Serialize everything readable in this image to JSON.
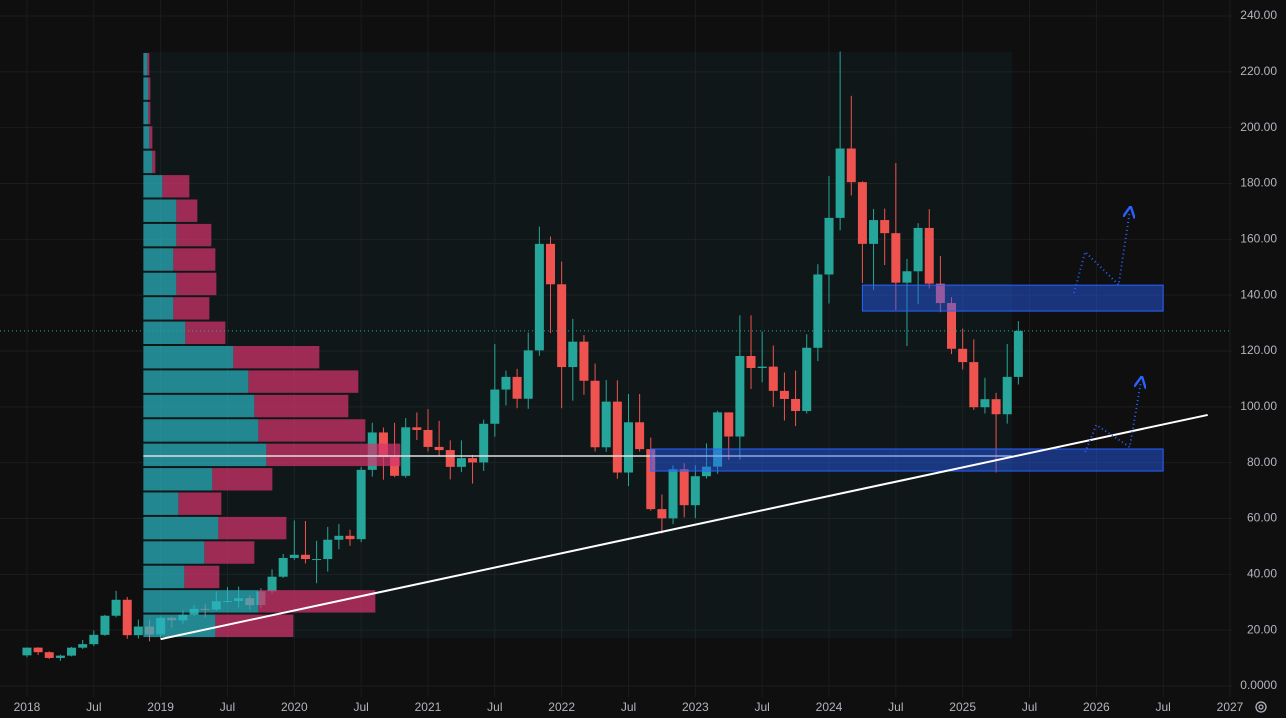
{
  "chart_data": {
    "type": "candlestick",
    "x": [
      "2018-01",
      "2018-02",
      "2018-03",
      "2018-04",
      "2018-05",
      "2018-06",
      "2018-07",
      "2018-08",
      "2018-09",
      "2018-10",
      "2018-11",
      "2018-12",
      "2019-01",
      "2019-02",
      "2019-03",
      "2019-04",
      "2019-05",
      "2019-06",
      "2019-07",
      "2019-08",
      "2019-09",
      "2019-10",
      "2019-11",
      "2019-12",
      "2020-01",
      "2020-02",
      "2020-03",
      "2020-04",
      "2020-05",
      "2020-06",
      "2020-07",
      "2020-08",
      "2020-09",
      "2020-10",
      "2020-11",
      "2020-12",
      "2021-01",
      "2021-02",
      "2021-03",
      "2021-04",
      "2021-05",
      "2021-06",
      "2021-07",
      "2021-08",
      "2021-09",
      "2021-10",
      "2021-11",
      "2021-12",
      "2022-01",
      "2022-02",
      "2022-03",
      "2022-04",
      "2022-05",
      "2022-06",
      "2022-07",
      "2022-08",
      "2022-09",
      "2022-10",
      "2022-11",
      "2022-12",
      "2023-01",
      "2023-02",
      "2023-03",
      "2023-04",
      "2023-05",
      "2023-06",
      "2023-07",
      "2023-08",
      "2023-09",
      "2023-10",
      "2023-11",
      "2023-12",
      "2024-01",
      "2024-02",
      "2024-03",
      "2024-04",
      "2024-05",
      "2024-06",
      "2024-07",
      "2024-08",
      "2024-09",
      "2024-10",
      "2024-11",
      "2024-12",
      "2025-01",
      "2025-02",
      "2025-03",
      "2025-04",
      "2025-05",
      "2025-06"
    ],
    "open": [
      10.98,
      13.74,
      12.11,
      10.05,
      10.88,
      13.73,
      14.99,
      18.33,
      25.17,
      30.89,
      18.21,
      21.3,
      18.46,
      24.41,
      23.53,
      25.52,
      27.63,
      27.41,
      30.37,
      30.45,
      31.45,
      28.99,
      33.93,
      39.15,
      45.86,
      47.0,
      45.48,
      45.48,
      52.39,
      53.8,
      52.61,
      77.43,
      90.82,
      81.99,
      75.29,
      92.66,
      91.71,
      85.64,
      84.51,
      78.5,
      81.62,
      80.08,
      93.93,
      106.19,
      110.72,
      102.9,
      120.23,
      158.37,
      143.9,
      114.25,
      123.34,
      109.34,
      85.52,
      101.86,
      76.47,
      94.47,
      84.86,
      63.36,
      60.06,
      77.63,
      64.77,
      75.15,
      78.58,
      98.01,
      89.37,
      118.21,
      113.91,
      114.4,
      105.72,
      102.82,
      98.5,
      121.16,
      147.41,
      167.69,
      192.53,
      180.49,
      158.38,
      166.9,
      162.21,
      144.48,
      148.56,
      164.08,
      144.13,
      137.18,
      120.79,
      116.02,
      99.86,
      102.74,
      97.35,
      110.73
    ],
    "high": [
      13.8,
      13.9,
      12.4,
      11.2,
      14.0,
      16.5,
      19.9,
      25.5,
      34.1,
      31.9,
      23.8,
      23.8,
      24.9,
      24.8,
      27.2,
      29.0,
      29.5,
      33.9,
      35.5,
      35.6,
      32.5,
      35.0,
      41.8,
      47.3,
      59.3,
      59.1,
      52.0,
      57.0,
      58.0,
      56.0,
      78.5,
      94.3,
      92.6,
      94.3,
      96.0,
      97.98,
      99.2,
      95.0,
      88.0,
      88.0,
      82.8,
      95.4,
      122.5,
      113.0,
      113.6,
      126.6,
      164.5,
      161.0,
      152.0,
      131.5,
      125.7,
      115.5,
      109.6,
      109.5,
      104.6,
      104.6,
      89.0,
      68.6,
      79.0,
      79.8,
      79.1,
      86.9,
      98.6,
      98.0,
      132.8,
      132.8,
      127.0,
      122.0,
      112.3,
      113.0,
      126.0,
      151.1,
      182.7,
      227.3,
      211.4,
      180.8,
      170.9,
      171.0,
      187.3,
      153.0,
      165.8,
      170.8,
      154.0,
      139.3,
      128.0,
      124.2,
      110.4,
      105.0,
      122.5,
      130.7
    ],
    "low": [
      10.3,
      11.1,
      9.7,
      9.0,
      10.6,
      13.3,
      14.3,
      18.0,
      24.6,
      16.9,
      17.0,
      16.0,
      16.9,
      20.9,
      22.1,
      25.0,
      24.5,
      26.9,
      29.9,
      28.1,
      27.4,
      27.9,
      33.1,
      38.7,
      45.2,
      43.9,
      36.8,
      41.0,
      49.0,
      50.2,
      51.5,
      75.0,
      73.9,
      74.8,
      74.6,
      88.1,
      84.0,
      82.5,
      74.0,
      76.6,
      72.5,
      77.0,
      89.3,
      100.5,
      99.5,
      99.3,
      118.3,
      126.4,
      99.5,
      102.2,
      104.3,
      84.0,
      83.9,
      74.2,
      71.6,
      84.0,
      62.8,
      54.6,
      58.0,
      60.4,
      60.1,
      74.3,
      76.0,
      81.0,
      81.0,
      106.4,
      108.8,
      100.0,
      95.1,
      93.1,
      97.6,
      116.4,
      137.0,
      163.2,
      175.7,
      144.3,
      141.9,
      150.8,
      134.7,
      121.8,
      136.8,
      142.4,
      133.9,
      118.9,
      113.4,
      98.9,
      97.6,
      76.5,
      94.0,
      108.0
    ],
    "close": [
      13.74,
      12.11,
      10.05,
      10.88,
      13.73,
      14.99,
      18.33,
      25.17,
      30.89,
      18.21,
      21.3,
      18.46,
      24.41,
      23.53,
      25.52,
      27.63,
      27.41,
      30.37,
      30.45,
      31.45,
      28.99,
      33.93,
      39.15,
      45.86,
      47.0,
      45.48,
      45.48,
      52.39,
      53.8,
      52.61,
      77.43,
      90.82,
      81.99,
      75.29,
      92.66,
      91.71,
      85.64,
      84.51,
      78.5,
      81.62,
      80.08,
      93.93,
      106.19,
      110.72,
      102.9,
      120.23,
      158.37,
      143.9,
      114.25,
      123.34,
      109.34,
      85.52,
      101.86,
      76.47,
      94.47,
      84.86,
      63.36,
      60.06,
      77.63,
      64.77,
      75.15,
      78.58,
      98.01,
      89.37,
      118.21,
      113.91,
      114.4,
      105.72,
      102.82,
      98.5,
      121.16,
      147.41,
      167.69,
      192.53,
      180.49,
      158.38,
      166.9,
      162.21,
      144.48,
      148.56,
      164.08,
      144.13,
      137.18,
      120.79,
      116.02,
      99.86,
      102.74,
      97.35,
      110.73,
      127.2
    ],
    "up_color": "#26a69a",
    "down_color": "#ef5350",
    "xlim": [
      "2017-11",
      "2027-01"
    ],
    "xticks": [
      {
        "value": "2018-01",
        "label": "2018"
      },
      {
        "value": "2018-07",
        "label": "Jul"
      },
      {
        "value": "2019-01",
        "label": "2019"
      },
      {
        "value": "2019-07",
        "label": "Jul"
      },
      {
        "value": "2020-01",
        "label": "2020"
      },
      {
        "value": "2020-07",
        "label": "Jul"
      },
      {
        "value": "2021-01",
        "label": "2021"
      },
      {
        "value": "2021-07",
        "label": "Jul"
      },
      {
        "value": "2022-01",
        "label": "2022"
      },
      {
        "value": "2022-07",
        "label": "Jul"
      },
      {
        "value": "2023-01",
        "label": "2023"
      },
      {
        "value": "2023-07",
        "label": "Jul"
      },
      {
        "value": "2024-01",
        "label": "2024"
      },
      {
        "value": "2024-07",
        "label": "Jul"
      },
      {
        "value": "2025-01",
        "label": "2025"
      },
      {
        "value": "2025-07",
        "label": "Jul"
      },
      {
        "value": "2026-01",
        "label": "2026"
      },
      {
        "value": "2026-07",
        "label": "Jul"
      },
      {
        "value": "2027-01",
        "label": "2027"
      }
    ],
    "ylim": [
      0,
      240
    ],
    "yticks": [
      {
        "value": 0,
        "label": "0.0000"
      },
      {
        "value": 20,
        "label": "20.00"
      },
      {
        "value": 40,
        "label": "40.00"
      },
      {
        "value": 60,
        "label": "60.00"
      },
      {
        "value": 80,
        "label": "80.00"
      },
      {
        "value": 100,
        "label": "100.00"
      },
      {
        "value": 120,
        "label": "120.00"
      },
      {
        "value": 140,
        "label": "140.00"
      },
      {
        "value": 160,
        "label": "160.00"
      },
      {
        "value": 180,
        "label": "180.00"
      },
      {
        "value": 200,
        "label": "200.00"
      },
      {
        "value": 220,
        "label": "220.00"
      },
      {
        "value": 240,
        "label": "240.00"
      }
    ],
    "grid": true,
    "volume_profile": {
      "start": "2018-11",
      "end": "2025-05",
      "bins": [
        17.2,
        25.95,
        34.69,
        43.44,
        52.18,
        60.93,
        69.68,
        78.42,
        87.17,
        95.91,
        104.66,
        113.41,
        122.15,
        130.9,
        139.64,
        148.39,
        157.14,
        165.88,
        174.63,
        183.37,
        192.12,
        200.87,
        209.61,
        218.36,
        227.1
      ],
      "up": [
        72,
        115,
        41,
        61,
        75,
        35,
        69,
        123,
        115,
        111,
        105,
        90,
        42,
        30,
        33,
        30,
        33,
        33,
        19,
        9,
        6,
        5,
        5,
        4
      ],
      "down": [
        78,
        117,
        35,
        50,
        68,
        43,
        60,
        134,
        107,
        94,
        110,
        86,
        40,
        36,
        40,
        42,
        35,
        21,
        27,
        3,
        3,
        2,
        2,
        2
      ],
      "poc": 82.4,
      "up_color": "#2bb3c0",
      "down_color": "#d6336c"
    },
    "zones": [
      {
        "start": "2024-04",
        "end": "2026-07",
        "top": 143.6,
        "bottom": 134.3
      },
      {
        "start": "2022-09",
        "end": "2026-07",
        "top": 84.9,
        "bottom": 77.0
      }
    ],
    "trendline": {
      "x": [
        "2019-01",
        "2026-11"
      ],
      "y": [
        16.8,
        97.1
      ]
    },
    "projections": [
      {
        "x": [
          "2025-11",
          "2025-12",
          "2026-03",
          "2026-04"
        ],
        "y": [
          140.8,
          155.5,
          143.7,
          169.8
        ]
      },
      {
        "x": [
          "2025-12",
          "2026-01",
          "2026-04",
          "2026-05"
        ],
        "y": [
          83.8,
          93.5,
          85.6,
          108.9
        ]
      }
    ]
  }
}
